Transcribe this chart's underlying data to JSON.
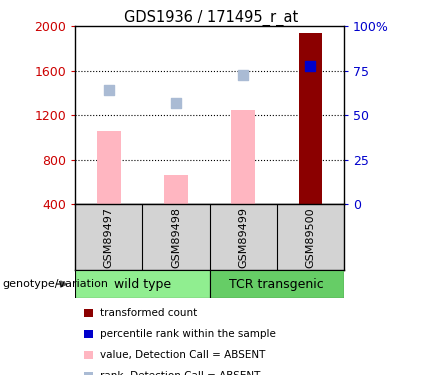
{
  "title": "GDS1936 / 171495_r_at",
  "samples": [
    "GSM89497",
    "GSM89498",
    "GSM89499",
    "GSM89500"
  ],
  "group_labels": [
    "wild type",
    "TCR transgenic"
  ],
  "ylim_left": [
    400,
    2000
  ],
  "ylim_right": [
    0,
    100
  ],
  "yticks_left": [
    400,
    800,
    1200,
    1600,
    2000
  ],
  "yticks_right": [
    0,
    25,
    50,
    75,
    100
  ],
  "yticklabels_right": [
    "0",
    "25",
    "50",
    "75",
    "100%"
  ],
  "bar_values": [
    1060,
    660,
    1250,
    1940
  ],
  "bar_colors": [
    "#FFB6C1",
    "#FFB6C1",
    "#FFB6C1",
    "#8B0000"
  ],
  "dot_values": [
    1430,
    1310,
    1560,
    1640
  ],
  "dot_colors": [
    "#AABBD4",
    "#AABBD4",
    "#AABBD4",
    "#0000CC"
  ],
  "left_ylabel_color": "#CC0000",
  "right_ylabel_color": "#0000CC",
  "label_area_color": "#D3D3D3",
  "group_area_color_wt": "#90EE90",
  "group_area_color_tcr": "#66CD66",
  "legend_colors": [
    "#8B0000",
    "#0000CC",
    "#FFB6C1",
    "#AABBD4"
  ],
  "legend_labels": [
    "transformed count",
    "percentile rank within the sample",
    "value, Detection Call = ABSENT",
    "rank, Detection Call = ABSENT"
  ]
}
